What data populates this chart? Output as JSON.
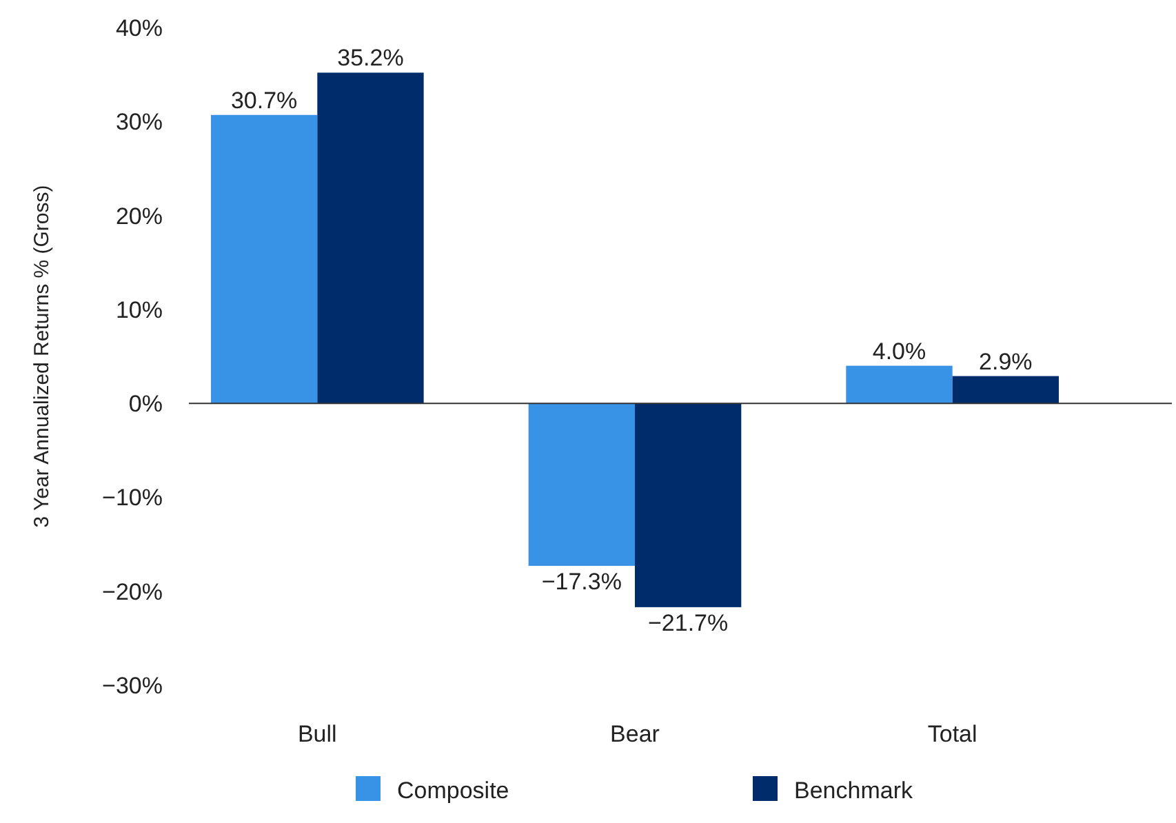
{
  "chart_data": {
    "type": "bar",
    "ylabel": "3 Year Annualized Returns % (Gross)",
    "categories": [
      "Bull",
      "Bear",
      "Total"
    ],
    "series": [
      {
        "name": "Composite",
        "color": "#3892e6",
        "values": [
          30.7,
          -17.3,
          4.0
        ],
        "value_labels": [
          "30.7%",
          "−17.3%",
          "4.0%"
        ]
      },
      {
        "name": "Benchmark",
        "color": "#002c6c",
        "values": [
          35.2,
          -21.7,
          2.9
        ],
        "value_labels": [
          "35.2%",
          "−21.7%",
          "2.9%"
        ]
      }
    ],
    "ylim": [
      -30,
      40
    ],
    "yticks": [
      {
        "value": -30,
        "label": "−30%"
      },
      {
        "value": -20,
        "label": "−20%"
      },
      {
        "value": -10,
        "label": "−10%"
      },
      {
        "value": 0,
        "label": "0%"
      },
      {
        "value": 10,
        "label": "10%"
      },
      {
        "value": 20,
        "label": "20%"
      },
      {
        "value": 30,
        "label": "30%"
      },
      {
        "value": 40,
        "label": "40%"
      }
    ],
    "legend": "bottom"
  }
}
